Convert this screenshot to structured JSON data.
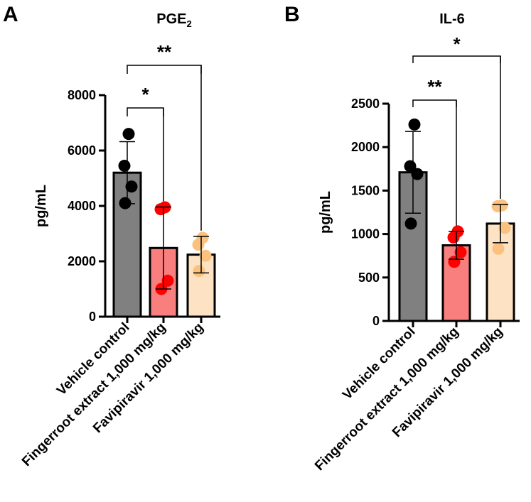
{
  "chart_data": [
    {
      "panel": "A",
      "type": "bar",
      "title": "PGE",
      "title_subscript": "2",
      "ylabel": "pg/mL",
      "ylim": [
        0,
        8000
      ],
      "yticks": [
        "0",
        "2000",
        "4000",
        "6000",
        "8000"
      ],
      "categories": [
        "Vehicle control",
        "Fingerroot extract 1,000 mg/kg",
        "Favipiravir 1,000 mg/kg"
      ],
      "values": [
        5200,
        2480,
        2240
      ],
      "errors": [
        1120,
        1480,
        660
      ],
      "points": [
        [
          6600,
          5450,
          4700,
          4100
        ],
        [
          3950,
          3880,
          1300,
          1000
        ],
        [
          2850,
          2600,
          2200,
          1650
        ]
      ],
      "colors": {
        "bars": [
          "#808080",
          "#f97f7f",
          "#fde3c4"
        ],
        "points": [
          "#000000",
          "#ff0000",
          "#fbc17e"
        ]
      },
      "significance": [
        {
          "from": 0,
          "to": 1,
          "label": "*"
        },
        {
          "from": 0,
          "to": 2,
          "label": "**"
        }
      ]
    },
    {
      "panel": "B",
      "type": "bar",
      "title": "IL-6",
      "title_subscript": "",
      "ylabel": "pg/mL",
      "ylim": [
        0,
        2500
      ],
      "yticks": [
        "0",
        "500",
        "1000",
        "1500",
        "2000",
        "2500"
      ],
      "categories": [
        "Vehicle control",
        "Fingerroot extract 1,000 mg/kg",
        "Favipiravir 1,000 mg/kg"
      ],
      "values": [
        1710,
        870,
        1120
      ],
      "errors": [
        470,
        160,
        220
      ],
      "points": [
        [
          2260,
          1780,
          1690,
          1120
        ],
        [
          1030,
          960,
          790,
          680
        ],
        [
          1330,
          1320,
          1070,
          830
        ]
      ],
      "colors": {
        "bars": [
          "#808080",
          "#f97f7f",
          "#fde3c4"
        ],
        "points": [
          "#000000",
          "#ff0000",
          "#fbc17e"
        ]
      },
      "significance": [
        {
          "from": 0,
          "to": 1,
          "label": "**"
        },
        {
          "from": 0,
          "to": 2,
          "label": "*"
        }
      ]
    }
  ]
}
